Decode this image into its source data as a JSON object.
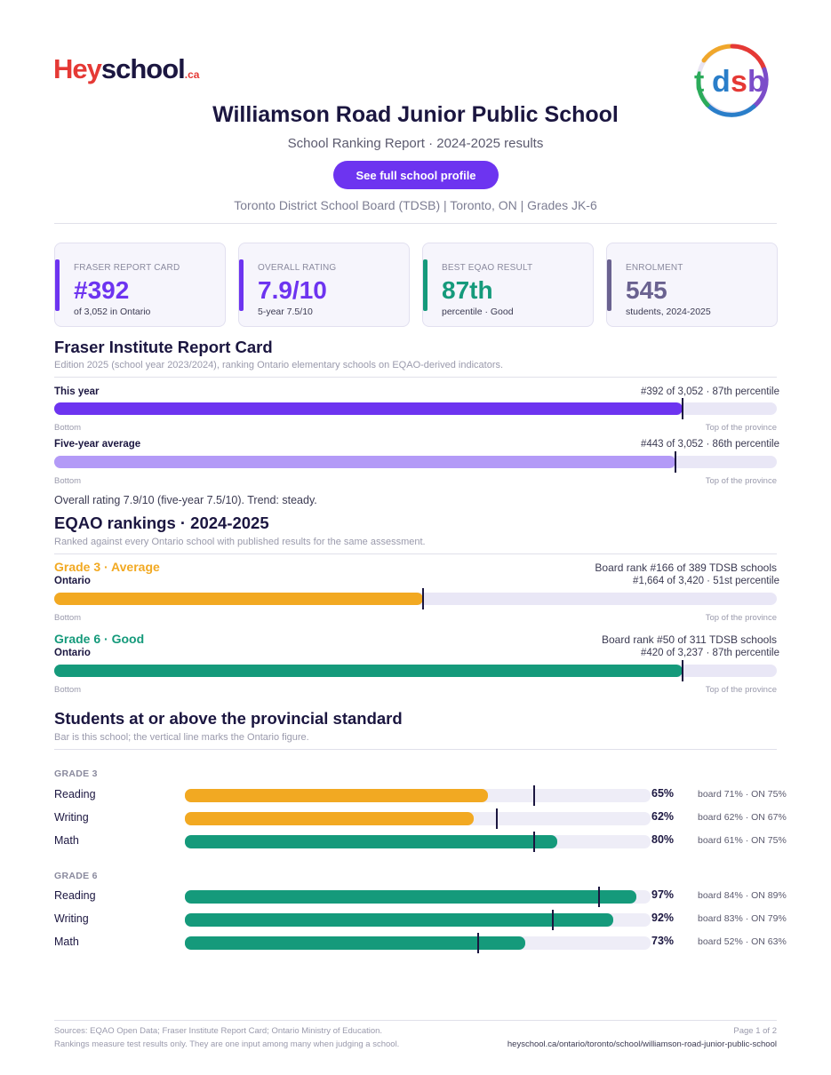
{
  "brand": {
    "hey": "Hey",
    "school": "school",
    "ca": ".ca"
  },
  "tdsb_logo": {
    "t": "t",
    "d": "d",
    "s": "s",
    "b": "b"
  },
  "header": {
    "school_name": "Williamson Road Junior Public School",
    "subtitle": "School Ranking Report  ·  2024-2025 results",
    "profile_button": "See full school profile",
    "meta": "Toronto District School Board (TDSB)  |  Toronto, ON  |  Grades JK-6"
  },
  "cards": [
    {
      "label": "FRASER REPORT CARD",
      "value": "#392",
      "sub": "of 3,052 in Ontario",
      "color": "#6d34f0"
    },
    {
      "label": "OVERALL RATING",
      "value": "7.9/10",
      "sub": "5-year 7.5/10",
      "color": "#6d34f0"
    },
    {
      "label": "BEST EQAO RESULT",
      "value": "87th",
      "sub": "percentile  ·  Good",
      "color": "#159a7b"
    },
    {
      "label": "ENROLMENT",
      "value": "545",
      "sub": "students, 2024-2025",
      "color": "#6a6290"
    }
  ],
  "fraser": {
    "title": "Fraser Institute Report Card",
    "note": "Edition 2025 (school year 2023/2024), ranking Ontario elementary schools on EQAO-derived indicators.",
    "this_year": {
      "label": "This year",
      "right": "#392 of 3,052  ·  87th percentile",
      "percentile": 87,
      "color": "#6d34f0"
    },
    "five_year": {
      "label": "Five-year average",
      "right": "#443 of 3,052  ·  86th percentile",
      "percentile": 86,
      "color": "#b39af7"
    },
    "scale_bottom": "Bottom",
    "scale_top": "Top of the province",
    "summary": "Overall rating 7.9/10 (five-year 7.5/10). Trend: steady."
  },
  "eqao": {
    "title": "EQAO rankings  ·  2024-2025",
    "note": "Ranked against every Ontario school with published results for the same assessment.",
    "grade3": {
      "head": "Grade 3  ·  Average",
      "sub": "Ontario",
      "board": "Board rank #166 of 389 TDSB schools",
      "ontario": "#1,664 of 3,420  ·  51st percentile",
      "percentile": 51,
      "color": "#f2a922"
    },
    "grade6": {
      "head": "Grade 6  ·  Good",
      "sub": "Ontario",
      "board": "Board rank #50 of 311 TDSB schools",
      "ontario": "#420 of 3,237  ·  87th percentile",
      "percentile": 87,
      "color": "#159a7b"
    },
    "scale_bottom": "Bottom",
    "scale_top": "Top of the province"
  },
  "standard": {
    "title": "Students at or above the provincial standard",
    "note": "Bar is this school; the vertical line marks the Ontario figure.",
    "grade3_label": "GRADE 3",
    "grade6_label": "GRADE 6",
    "grade3": [
      {
        "subject": "Reading",
        "pct": 65,
        "pct_text": "65%",
        "ontario": 75,
        "cmp": "board 71%  ·  ON 75%",
        "color": "#f2a922"
      },
      {
        "subject": "Writing",
        "pct": 62,
        "pct_text": "62%",
        "ontario": 67,
        "cmp": "board 62%  ·  ON 67%",
        "color": "#f2a922"
      },
      {
        "subject": "Math",
        "pct": 80,
        "pct_text": "80%",
        "ontario": 75,
        "cmp": "board 61%  ·  ON 75%",
        "color": "#159a7b"
      }
    ],
    "grade6": [
      {
        "subject": "Reading",
        "pct": 97,
        "pct_text": "97%",
        "ontario": 89,
        "cmp": "board 84%  ·  ON 89%",
        "color": "#159a7b"
      },
      {
        "subject": "Writing",
        "pct": 92,
        "pct_text": "92%",
        "ontario": 79,
        "cmp": "board 83%  ·  ON 79%",
        "color": "#159a7b"
      },
      {
        "subject": "Math",
        "pct": 73,
        "pct_text": "73%",
        "ontario": 63,
        "cmp": "board 52%  ·  ON 63%",
        "color": "#159a7b"
      }
    ]
  },
  "footer": {
    "sources": "Sources: EQAO Open Data; Fraser Institute Report Card; Ontario Ministry of Education.",
    "disclaimer": "Rankings measure test results only. They are one input among many when judging a school.",
    "page": "Page 1 of 2",
    "url": "heyschool.ca/ontario/toronto/school/williamson-road-junior-public-school"
  }
}
